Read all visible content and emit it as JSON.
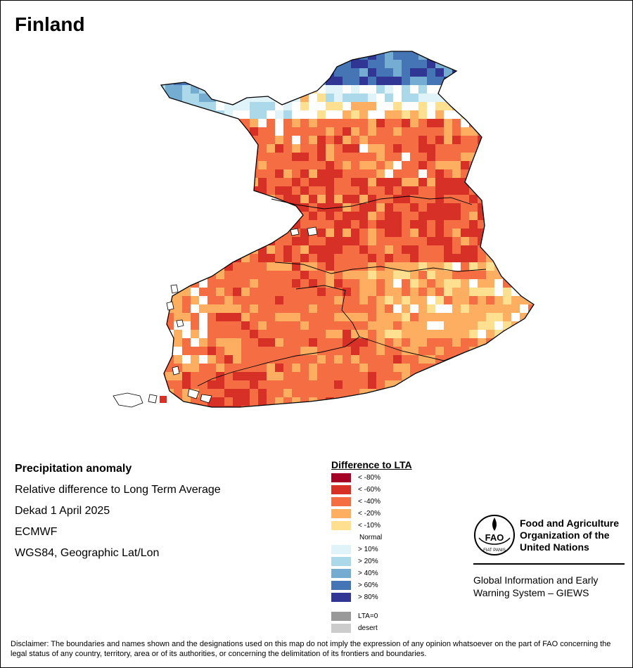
{
  "title": "Finland",
  "info": {
    "heading": "Precipitation anomaly",
    "line1": "Relative difference to Long Term Average",
    "line2": "Dekad 1 April 2025",
    "line3": "ECMWF",
    "line4": "WGS84, Geographic Lat/Lon"
  },
  "legend": {
    "title": "Difference to LTA",
    "items": [
      {
        "label": "< -80%",
        "color": "#a50026"
      },
      {
        "label": "< -60%",
        "color": "#d73027"
      },
      {
        "label": "< -40%",
        "color": "#f46d43"
      },
      {
        "label": "< -20%",
        "color": "#fdae61"
      },
      {
        "label": "< -10%",
        "color": "#fee090"
      },
      {
        "label": "Normal",
        "color": "#ffffff"
      },
      {
        "label": "> 10%",
        "color": "#e0f3f8"
      },
      {
        "label": "> 20%",
        "color": "#abd9e9"
      },
      {
        "label": "> 40%",
        "color": "#74add1"
      },
      {
        "label": "> 60%",
        "color": "#4575b4"
      },
      {
        "label": "> 80%",
        "color": "#313695"
      },
      {
        "label": "LTA=0",
        "color": "#999999"
      },
      {
        "label": "desert",
        "color": "#cccccc"
      }
    ]
  },
  "org": {
    "name": "Food and Agriculture Organization of the United Nations",
    "logo_text": "FAO",
    "logo_motto": "FIAT PANIS",
    "program": "Global Information and Early Warning System – GIEWS"
  },
  "disclaimer": "Disclaimer: The boundaries and names shown and the designations used on this map do not imply the expression of any opinion whatsoever on the part of FAO concerning the legal status of any country, territory, area or of its authorities, or concerning the delimitation of its frontiers and boundaries."
}
